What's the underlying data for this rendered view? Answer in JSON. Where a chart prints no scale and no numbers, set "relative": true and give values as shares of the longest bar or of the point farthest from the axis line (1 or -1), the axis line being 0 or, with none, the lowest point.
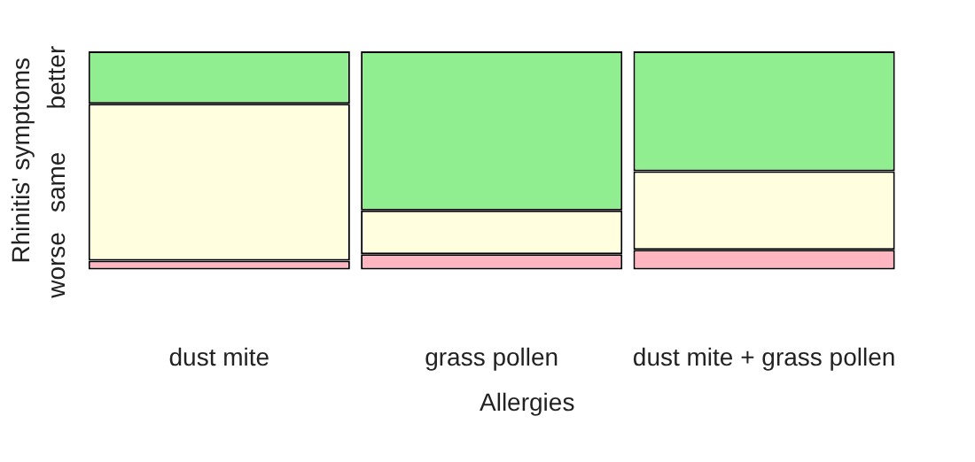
{
  "chart_data": {
    "type": "bar",
    "stacked": true,
    "relative": true,
    "xlabel": "Allergies",
    "ylabel": "Rhinitis' symptoms",
    "categories": [
      "dust mite",
      "grass pollen",
      "dust mite + grass pollen"
    ],
    "series": [
      {
        "name": "worse",
        "color": "#ffb6c1",
        "values": [
          0.04,
          0.07,
          0.09
        ]
      },
      {
        "name": "same",
        "color": "#ffffe0",
        "values": [
          0.72,
          0.2,
          0.36
        ]
      },
      {
        "name": "better",
        "color": "#90ee90",
        "values": [
          0.24,
          0.73,
          0.55
        ]
      }
    ],
    "grid": false,
    "legend": false
  }
}
